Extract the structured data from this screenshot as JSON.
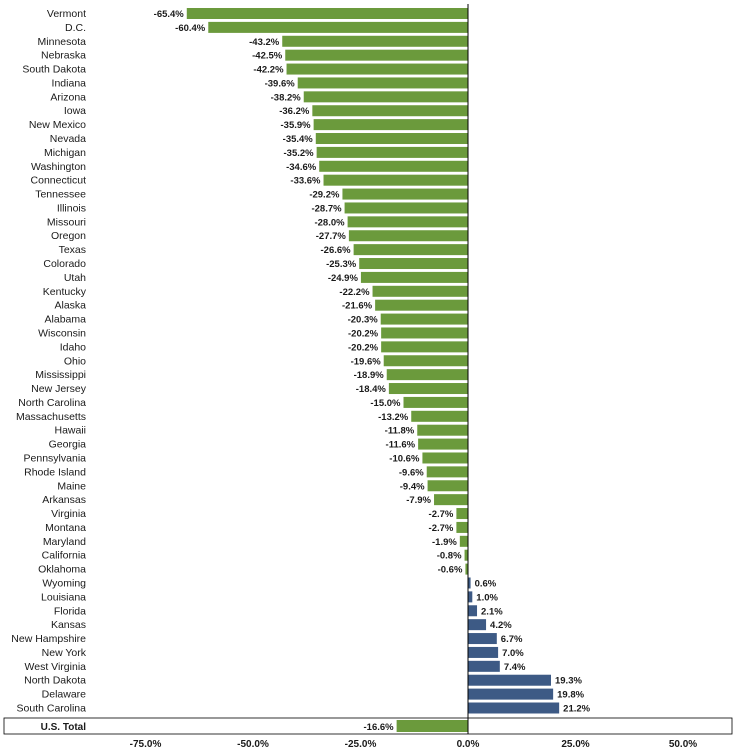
{
  "chart_data": {
    "type": "bar",
    "orientation": "horizontal",
    "categories": [
      "Vermont",
      "D.C.",
      "Minnesota",
      "Nebraska",
      "South Dakota",
      "Indiana",
      "Arizona",
      "Iowa",
      "New Mexico",
      "Nevada",
      "Michigan",
      "Washington",
      "Connecticut",
      "Tennessee",
      "Illinois",
      "Missouri",
      "Oregon",
      "Texas",
      "Colorado",
      "Utah",
      "Kentucky",
      "Alaska",
      "Alabama",
      "Wisconsin",
      "Idaho",
      "Ohio",
      "Mississippi",
      "New Jersey",
      "North Carolina",
      "Massachusetts",
      "Hawaii",
      "Georgia",
      "Pennsylvania",
      "Rhode Island",
      "Maine",
      "Arkansas",
      "Virginia",
      "Montana",
      "Maryland",
      "California",
      "Oklahoma",
      "Wyoming",
      "Louisiana",
      "Florida",
      "Kansas",
      "New Hampshire",
      "New York",
      "West Virginia",
      "North Dakota",
      "Delaware",
      "South Carolina"
    ],
    "values": [
      -65.4,
      -60.4,
      -43.2,
      -42.5,
      -42.2,
      -39.6,
      -38.2,
      -36.2,
      -35.9,
      -35.4,
      -35.2,
      -34.6,
      -33.6,
      -29.2,
      -28.7,
      -28.0,
      -27.7,
      -26.6,
      -25.3,
      -24.9,
      -22.2,
      -21.6,
      -20.3,
      -20.2,
      -20.2,
      -19.6,
      -18.9,
      -18.4,
      -15.0,
      -13.2,
      -11.8,
      -11.6,
      -10.6,
      -9.6,
      -9.4,
      -7.9,
      -2.7,
      -2.7,
      -1.9,
      -0.8,
      -0.6,
      0.6,
      1.0,
      2.1,
      4.2,
      6.7,
      7.0,
      7.4,
      19.3,
      19.8,
      21.2
    ],
    "labels": [
      "-65.4%",
      "-60.4%",
      "-43.2%",
      "-42.5%",
      "-42.2%",
      "-39.6%",
      "-38.2%",
      "-36.2%",
      "-35.9%",
      "-35.4%",
      "-35.2%",
      "-34.6%",
      "-33.6%",
      "-29.2%",
      "-28.7%",
      "-28.0%",
      "-27.7%",
      "-26.6%",
      "-25.3%",
      "-24.9%",
      "-22.2%",
      "-21.6%",
      "-20.3%",
      "-20.2%",
      "-20.2%",
      "-19.6%",
      "-18.9%",
      "-18.4%",
      "-15.0%",
      "-13.2%",
      "-11.8%",
      "-11.6%",
      "-10.6%",
      "-9.6%",
      "-9.4%",
      "-7.9%",
      "-2.7%",
      "-2.7%",
      "-1.9%",
      "-0.8%",
      "-0.6%",
      "0.6%",
      "1.0%",
      "2.1%",
      "4.2%",
      "6.7%",
      "7.0%",
      "7.4%",
      "19.3%",
      "19.8%",
      "21.2%"
    ],
    "total": {
      "category": "U.S. Total",
      "value": -16.6,
      "label": "-16.6%"
    },
    "xlim": [
      -90,
      60
    ],
    "xticks": [
      -75,
      -50,
      -25,
      0,
      25,
      50
    ],
    "xtick_labels": [
      "-75.0%",
      "-50.0%",
      "-25.0%",
      "0.0%",
      "25.0%",
      "50.0%"
    ],
    "title": "",
    "xlabel": "",
    "ylabel": "",
    "grid": false,
    "legend": "none",
    "colors": {
      "negative": "#6b9a3c",
      "positive": "#3d5a85",
      "axis": "#000000"
    }
  }
}
